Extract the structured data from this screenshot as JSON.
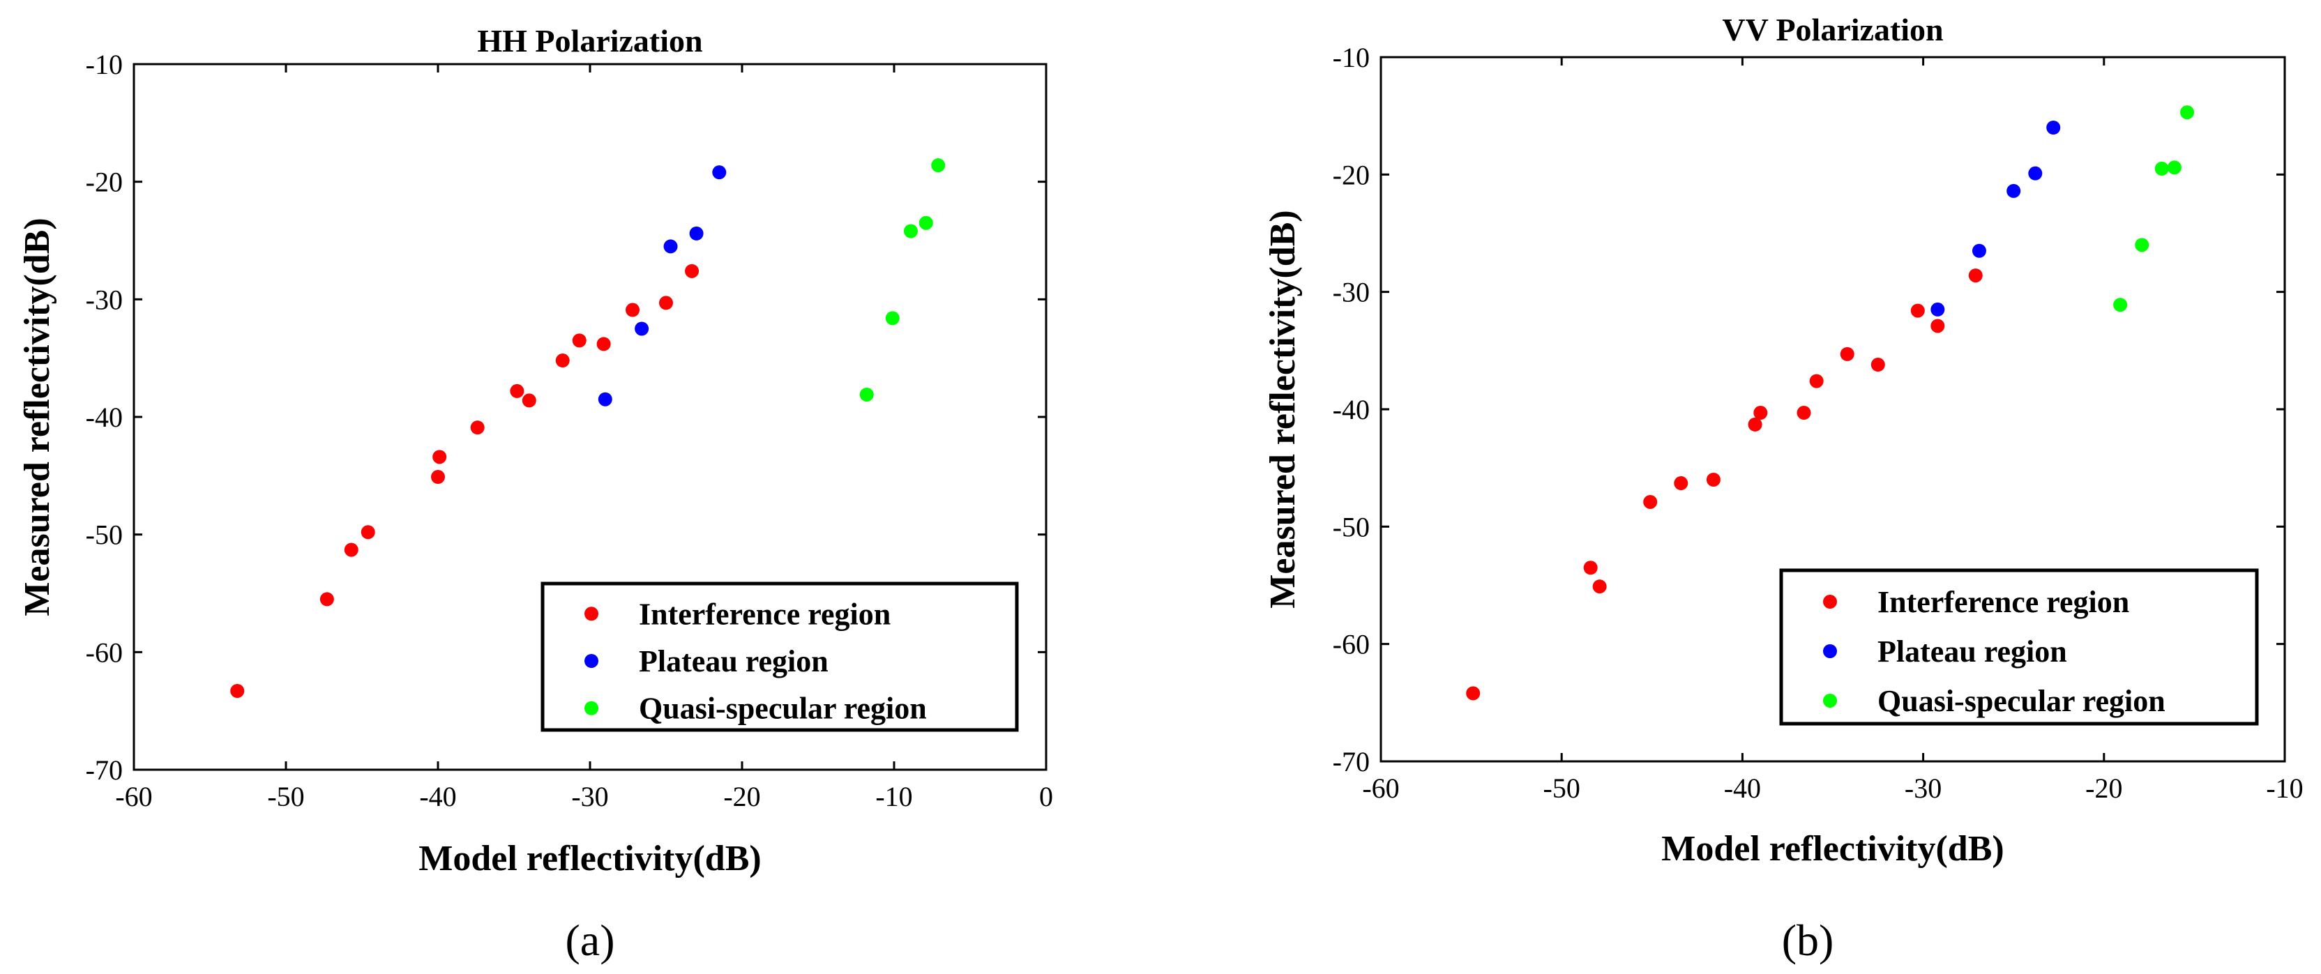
{
  "chart_data": [
    {
      "type": "scatter",
      "title": "HH Polarization",
      "xlabel": "Model reflectivity(dB)",
      "ylabel": "Measured reflectivity(dB)",
      "xlim": [
        -60,
        0
      ],
      "ylim": [
        -70,
        -10
      ],
      "xticks": [
        -60,
        -50,
        -40,
        -30,
        -20,
        -10,
        0
      ],
      "yticks": [
        -70,
        -60,
        -50,
        -40,
        -30,
        -20,
        -10
      ],
      "caption": "(a)",
      "legend_position": "bottom-right",
      "series": [
        {
          "name": "Interference region",
          "color": "#ff0000",
          "points": [
            [
              -53.2,
              -63.3
            ],
            [
              -47.3,
              -55.5
            ],
            [
              -45.7,
              -51.3
            ],
            [
              -44.6,
              -49.8
            ],
            [
              -40,
              -45.1
            ],
            [
              -39.9,
              -43.4
            ],
            [
              -37.4,
              -40.9
            ],
            [
              -34.8,
              -37.8
            ],
            [
              -34,
              -38.6
            ],
            [
              -31.8,
              -35.2
            ],
            [
              -30.7,
              -33.5
            ],
            [
              -29.1,
              -33.8
            ],
            [
              -27.2,
              -30.9
            ],
            [
              -25,
              -30.3
            ],
            [
              -23.3,
              -27.6
            ]
          ]
        },
        {
          "name": "Plateau region",
          "color": "#0000ff",
          "points": [
            [
              -29,
              -38.5
            ],
            [
              -26.6,
              -32.5
            ],
            [
              -24.7,
              -25.5
            ],
            [
              -23,
              -24.4
            ],
            [
              -21.5,
              -19.2
            ]
          ]
        },
        {
          "name": "Quasi-specular region",
          "color": "#00ff00",
          "points": [
            [
              -11.8,
              -38.1
            ],
            [
              -10.1,
              -31.6
            ],
            [
              -8.9,
              -24.2
            ],
            [
              -7.9,
              -23.5
            ],
            [
              -7.1,
              -18.6
            ]
          ]
        }
      ]
    },
    {
      "type": "scatter",
      "title": "VV Polarization",
      "xlabel": "Model reflectivity(dB)",
      "ylabel": "Measured reflectivity(dB)",
      "xlim": [
        -60,
        -10
      ],
      "ylim": [
        -70,
        -10
      ],
      "xticks": [
        -60,
        -50,
        -40,
        -30,
        -20,
        -10
      ],
      "yticks": [
        -70,
        -60,
        -50,
        -40,
        -30,
        -20,
        -10
      ],
      "caption": "(b)",
      "legend_position": "bottom-right",
      "series": [
        {
          "name": "Interference region",
          "color": "#ff0000",
          "points": [
            [
              -54.9,
              -64.2
            ],
            [
              -48.4,
              -53.5
            ],
            [
              -47.9,
              -55.1
            ],
            [
              -45.1,
              -47.9
            ],
            [
              -43.4,
              -46.3
            ],
            [
              -41.6,
              -46
            ],
            [
              -39.3,
              -41.3
            ],
            [
              -39,
              -40.3
            ],
            [
              -36.6,
              -40.3
            ],
            [
              -35.9,
              -37.6
            ],
            [
              -34.2,
              -35.3
            ],
            [
              -32.5,
              -36.2
            ],
            [
              -30.3,
              -31.6
            ],
            [
              -29.2,
              -32.9
            ],
            [
              -27.1,
              -28.6
            ]
          ]
        },
        {
          "name": "Plateau region",
          "color": "#0000ff",
          "points": [
            [
              -29.2,
              -31.5
            ],
            [
              -26.9,
              -26.5
            ],
            [
              -25,
              -21.4
            ],
            [
              -23.8,
              -19.9
            ],
            [
              -22.8,
              -16
            ]
          ]
        },
        {
          "name": "Quasi-specular region",
          "color": "#00ff00",
          "points": [
            [
              -19.1,
              -31.1
            ],
            [
              -17.9,
              -26
            ],
            [
              -16.8,
              -19.5
            ],
            [
              -16.1,
              -19.4
            ],
            [
              -15.4,
              -14.7
            ]
          ]
        }
      ]
    }
  ]
}
